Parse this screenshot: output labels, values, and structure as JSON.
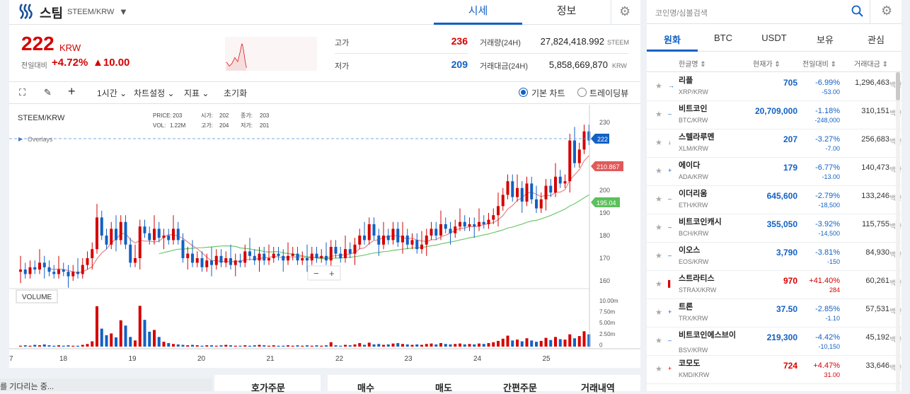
{
  "header": {
    "coin_name": "스팀",
    "pair": "STEEM/KRW",
    "tabs": [
      "시세",
      "정보"
    ]
  },
  "price": {
    "current": "222",
    "unit": "KRW",
    "change_label": "전일대비",
    "change_pct": "+4.72%",
    "change_abs": "▲10.00",
    "high_label": "고가",
    "high": "236",
    "low_label": "저가",
    "low": "209",
    "volume_label": "거래량(24H)",
    "volume": "27,824,418.992",
    "volume_unit": "STEEM",
    "amount_label": "거래대금(24H)",
    "amount": "5,858,669,870",
    "amount_unit": "KRW"
  },
  "toolbar": {
    "interval": "1시간",
    "settings": "차트설정",
    "indicators": "지표",
    "reset": "초기화",
    "basic_chart": "기본 차트",
    "tradingview": "트레이딩뷰"
  },
  "chart_data": {
    "type": "candlestick",
    "symbol": "STEEM/KRW",
    "ohlc_info": {
      "price_label": "PRICE:",
      "price": "203",
      "open_label": "시가:",
      "open": "202",
      "close_label": "종가:",
      "close": "203",
      "vol_label": "VOL:",
      "vol": "1.22M",
      "high_label": "고가:",
      "high": "204",
      "low_label": "저가:",
      "low": "201"
    },
    "overlays_label": "Overlays",
    "volume_label": "VOLUME",
    "price_axis": [
      "230",
      "200",
      "190",
      "180",
      "170",
      "160"
    ],
    "price_axis_values": [
      230,
      200,
      190,
      180,
      170,
      160
    ],
    "volume_axis": [
      "10.00m",
      "7.50m",
      "5.00m",
      "2.50m",
      "0"
    ],
    "x_axis": [
      "7",
      "18",
      "19",
      "20",
      "21",
      "22",
      "23",
      "24",
      "25"
    ],
    "last_price_tag": "222",
    "ma_short_tag": "210.867",
    "ma_long_tag": "195.04",
    "zoom_minus": "−",
    "zoom_plus": "+",
    "candles_approx": [
      [
        164,
        165
      ],
      [
        165,
        163
      ],
      [
        163,
        166
      ],
      [
        166,
        165
      ],
      [
        165,
        168
      ],
      [
        168,
        166
      ],
      [
        166,
        164
      ],
      [
        164,
        163
      ],
      [
        163,
        165
      ],
      [
        165,
        164
      ],
      [
        164,
        162
      ],
      [
        162,
        164
      ],
      [
        164,
        163
      ],
      [
        163,
        167
      ],
      [
        167,
        170
      ],
      [
        170,
        174
      ],
      [
        174,
        188
      ],
      [
        188,
        180
      ],
      [
        180,
        176
      ],
      [
        176,
        183
      ],
      [
        183,
        178
      ],
      [
        178,
        186
      ],
      [
        186,
        176
      ],
      [
        176,
        168
      ],
      [
        168,
        170
      ],
      [
        170,
        184
      ],
      [
        184,
        181
      ],
      [
        181,
        178
      ],
      [
        178,
        183
      ],
      [
        183,
        179
      ],
      [
        179,
        180
      ],
      [
        180,
        178
      ],
      [
        178,
        183
      ],
      [
        183,
        178
      ],
      [
        178,
        170
      ],
      [
        170,
        172
      ],
      [
        172,
        168
      ],
      [
        168,
        170
      ],
      [
        170,
        166
      ],
      [
        166,
        169
      ],
      [
        169,
        167
      ],
      [
        167,
        171
      ],
      [
        171,
        168
      ],
      [
        168,
        170
      ],
      [
        170,
        167
      ],
      [
        167,
        169
      ],
      [
        169,
        168
      ],
      [
        168,
        173
      ],
      [
        173,
        171
      ],
      [
        171,
        169
      ],
      [
        169,
        172
      ],
      [
        172,
        169
      ],
      [
        169,
        170
      ],
      [
        170,
        172
      ],
      [
        172,
        171
      ],
      [
        171,
        169
      ],
      [
        169,
        171
      ],
      [
        171,
        172
      ],
      [
        172,
        169
      ],
      [
        169,
        170
      ],
      [
        170,
        169
      ],
      [
        169,
        172
      ],
      [
        172,
        170
      ],
      [
        170,
        171
      ],
      [
        171,
        169
      ],
      [
        169,
        175
      ],
      [
        175,
        172
      ],
      [
        172,
        170
      ],
      [
        170,
        174
      ],
      [
        174,
        172
      ],
      [
        172,
        176
      ],
      [
        176,
        180
      ],
      [
        180,
        178
      ],
      [
        178,
        185
      ],
      [
        185,
        180
      ],
      [
        180,
        176
      ],
      [
        176,
        180
      ],
      [
        180,
        178
      ],
      [
        178,
        183
      ],
      [
        183,
        177
      ],
      [
        177,
        180
      ],
      [
        180,
        176
      ],
      [
        176,
        178
      ],
      [
        178,
        174
      ],
      [
        174,
        176
      ],
      [
        176,
        180
      ],
      [
        180,
        183
      ],
      [
        183,
        180
      ],
      [
        180,
        185
      ],
      [
        185,
        183
      ],
      [
        183,
        181
      ],
      [
        181,
        184
      ],
      [
        184,
        186
      ],
      [
        186,
        184
      ],
      [
        184,
        185
      ],
      [
        185,
        184
      ],
      [
        184,
        186
      ],
      [
        186,
        185
      ],
      [
        185,
        187
      ],
      [
        187,
        189
      ],
      [
        189,
        193
      ],
      [
        193,
        198
      ],
      [
        198,
        204
      ],
      [
        204,
        197
      ],
      [
        197,
        201
      ],
      [
        201,
        195
      ],
      [
        195,
        203
      ],
      [
        203,
        196
      ],
      [
        196,
        192
      ],
      [
        192,
        196
      ],
      [
        196,
        202
      ],
      [
        202,
        199
      ],
      [
        199,
        206
      ],
      [
        206,
        203
      ],
      [
        203,
        204
      ],
      [
        204,
        222
      ],
      [
        222,
        212
      ],
      [
        212,
        218
      ],
      [
        218,
        226
      ],
      [
        226,
        222
      ]
    ],
    "volumes_approx": [
      0.2,
      0.3,
      0.2,
      0.4,
      0.3,
      0.5,
      0.3,
      0.2,
      0.3,
      0.2,
      0.3,
      0.2,
      0.2,
      0.4,
      0.6,
      1.2,
      9.2,
      4.1,
      2.6,
      3.0,
      2.1,
      6.0,
      4.8,
      2.2,
      1.4,
      9.3,
      6.1,
      3.4,
      3.8,
      2.2,
      1.1,
      0.8,
      0.6,
      0.5,
      0.4,
      0.3,
      0.4,
      0.3,
      0.2,
      0.3,
      0.3,
      0.2,
      0.3,
      0.4,
      0.3,
      0.2,
      0.2,
      0.3,
      0.2,
      0.3,
      0.4,
      0.3,
      0.2,
      0.3,
      0.2,
      0.2,
      0.3,
      0.2,
      0.3,
      0.2,
      0.3,
      0.2,
      0.3,
      0.2,
      0.3,
      1.0,
      0.3,
      0.2,
      0.4,
      0.3,
      0.5,
      0.8,
      0.4,
      0.9,
      0.5,
      0.6,
      0.4,
      0.5,
      0.7,
      0.8,
      0.6,
      0.5,
      0.4,
      0.5,
      0.4,
      0.6,
      0.7,
      0.5,
      0.8,
      0.6,
      0.5,
      0.6,
      0.7,
      0.5,
      0.6,
      0.5,
      0.7,
      0.6,
      0.8,
      1.0,
      1.3,
      1.8,
      2.5,
      1.4,
      1.6,
      1.2,
      1.9,
      1.4,
      1.1,
      1.3,
      2.0,
      1.5,
      2.2,
      1.7,
      1.6,
      2.8,
      1.9,
      2.4,
      3.5,
      2.8
    ]
  },
  "bottom": {
    "loading": "를 기다리는 중...",
    "orderbook": "호가주문",
    "buy": "매수",
    "sell": "매도",
    "simple": "간편주문",
    "history": "거래내역"
  },
  "side": {
    "search_placeholder": "코인명/심볼검색",
    "tabs": [
      "원화",
      "BTC",
      "USDT",
      "보유",
      "관심"
    ],
    "col_name": "한글명 ⇕",
    "col_price": "현재가 ⇕",
    "col_change": "전일대비 ⇕",
    "col_volume": "거래대금 ⇕",
    "volume_unit": "백만",
    "coins": [
      {
        "name": "리플",
        "pair": "XRP/KRW",
        "price": "705",
        "pct": "-6.99%",
        "diff": "-53.00",
        "vol": "1,296,463",
        "dir": "down",
        "mark": "→"
      },
      {
        "name": "비트코인",
        "pair": "BTC/KRW",
        "price": "20,709,000",
        "pct": "-1.18%",
        "diff": "-248,000",
        "vol": "310,151",
        "dir": "down",
        "mark": "–"
      },
      {
        "name": "스텔라루멘",
        "pair": "XLM/KRW",
        "price": "207",
        "pct": "-3.27%",
        "diff": "-7.00",
        "vol": "256,683",
        "dir": "down",
        "mark": "↓"
      },
      {
        "name": "에이다",
        "pair": "ADA/KRW",
        "price": "179",
        "pct": "-6.77%",
        "diff": "-13.00",
        "vol": "140,473",
        "dir": "down",
        "mark": "+"
      },
      {
        "name": "이더리움",
        "pair": "ETH/KRW",
        "price": "645,600",
        "pct": "-2.79%",
        "diff": "-18,500",
        "vol": "133,246",
        "dir": "down",
        "mark": "–"
      },
      {
        "name": "비트코인캐시",
        "pair": "BCH/KRW",
        "price": "355,050",
        "pct": "-3.92%",
        "diff": "-14,500",
        "vol": "115,755",
        "dir": "down",
        "mark": "–"
      },
      {
        "name": "이오스",
        "pair": "EOS/KRW",
        "price": "3,790",
        "pct": "-3.81%",
        "diff": "-150",
        "vol": "84,930",
        "dir": "down",
        "mark": "–"
      },
      {
        "name": "스트라티스",
        "pair": "STRAX/KRW",
        "price": "970",
        "pct": "+41.40%",
        "diff": "284",
        "vol": "60,261",
        "dir": "up",
        "mark": "▌"
      },
      {
        "name": "트론",
        "pair": "TRX/KRW",
        "price": "37.50",
        "pct": "-2.85%",
        "diff": "-1.10",
        "vol": "57,531",
        "dir": "down",
        "mark": "+"
      },
      {
        "name": "비트코인에스브이",
        "pair": "BSV/KRW",
        "price": "219,300",
        "pct": "-4.42%",
        "diff": "-10,150",
        "vol": "45,192",
        "dir": "down",
        "mark": "–"
      },
      {
        "name": "코모도",
        "pair": "KMD/KRW",
        "price": "724",
        "pct": "+4.47%",
        "diff": "31.00",
        "vol": "33,646",
        "dir": "up",
        "mark": "+"
      }
    ]
  },
  "colors": {
    "up": "#d60000",
    "down": "#1261c4",
    "ma_short": "#e58585",
    "ma_long": "#6cc96c",
    "accent": "#1261c4"
  }
}
